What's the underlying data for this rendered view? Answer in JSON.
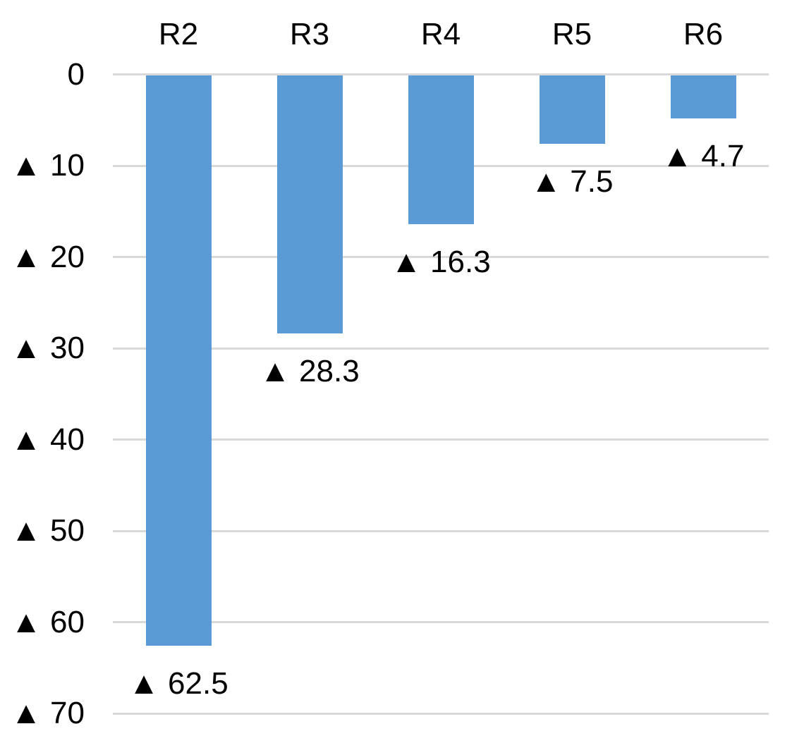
{
  "chart_data": {
    "type": "bar",
    "title": "",
    "orientation": "vertical-downward",
    "categories": [
      "R2",
      "R3",
      "R4",
      "R5",
      "R6"
    ],
    "values": [
      -62.5,
      -28.3,
      -16.3,
      -7.5,
      -4.7
    ],
    "data_labels": [
      "▲ 62.5",
      "▲ 28.3",
      "▲ 16.3",
      "▲ 7.5",
      "▲ 4.7"
    ],
    "y_axis": {
      "range": [
        -70,
        0
      ],
      "tick_step": 10,
      "negative_marker": "▲",
      "ticks": [
        {
          "value": 0,
          "label": "0"
        },
        {
          "value": -10,
          "label": "▲ 10"
        },
        {
          "value": -20,
          "label": "▲ 20"
        },
        {
          "value": -30,
          "label": "▲ 30"
        },
        {
          "value": -40,
          "label": "▲ 40"
        },
        {
          "value": -50,
          "label": "▲ 50"
        },
        {
          "value": -60,
          "label": "▲ 60"
        },
        {
          "value": -70,
          "label": "▲ 70"
        }
      ]
    },
    "legend": "none",
    "grid": true,
    "colors": {
      "bar": "#5B9BD5",
      "gridline": "#D9D9D9",
      "text": "#000000",
      "background": "#FFFFFF"
    }
  }
}
